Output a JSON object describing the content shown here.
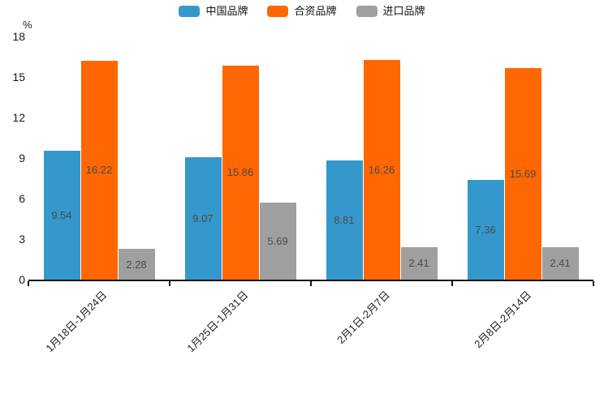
{
  "chart_data": {
    "type": "bar",
    "title": "",
    "unit_label": "%",
    "categories": [
      "1月18日-1月24日",
      "1月25日-1月31日",
      "2月1日-2月7日",
      "2月8日-2月14日"
    ],
    "series": [
      {
        "name": "中国品牌",
        "color": "#3598CC",
        "values": [
          9.54,
          9.07,
          8.81,
          7.36
        ]
      },
      {
        "name": "合资品牌",
        "color": "#FF6702",
        "values": [
          16.22,
          15.86,
          16.26,
          15.69
        ]
      },
      {
        "name": "进口品牌",
        "color": "#9F9F9F",
        "values": [
          2.28,
          5.69,
          2.41,
          2.41
        ]
      }
    ],
    "value_labels": [
      "9.54",
      "16.22",
      "2.28",
      "9.07",
      "15.86",
      "5.69",
      "8.81",
      "16.26",
      "2.41",
      "7.36",
      "15.69",
      "2.41"
    ],
    "y_axis": {
      "min": 0,
      "max": 18,
      "step": 3,
      "ticks": [
        "0",
        "3",
        "6",
        "9",
        "12",
        "15",
        "18"
      ]
    },
    "legend_position": "top",
    "grid": false,
    "value_label_position": "inside-center",
    "x_label_rotation_deg": 45
  }
}
